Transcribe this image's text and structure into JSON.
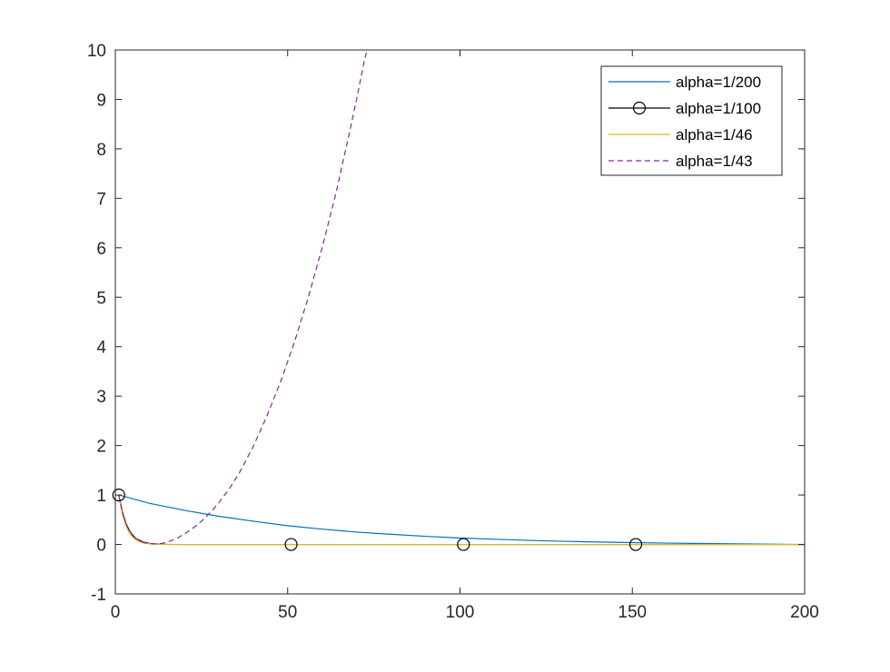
{
  "chart_data": {
    "type": "line",
    "title": "",
    "xlabel": "",
    "ylabel": "",
    "xlim": [
      0,
      200
    ],
    "ylim": [
      -1,
      10
    ],
    "xticks": [
      "0",
      "50",
      "100",
      "150",
      "200"
    ],
    "yticks": [
      "-1",
      "0",
      "1",
      "2",
      "3",
      "4",
      "5",
      "6",
      "7",
      "8",
      "9",
      "10"
    ],
    "grid": false,
    "box": true,
    "legend_position": "top-right",
    "series": [
      {
        "name": "alpha=1/200",
        "color": "#0072bd",
        "style": "solid",
        "marker": "none",
        "x": [
          1,
          10,
          20,
          30,
          40,
          50,
          60,
          70,
          80,
          90,
          100,
          110,
          120,
          130,
          140,
          150,
          160,
          170,
          180,
          190,
          200
        ],
        "y": [
          1.0,
          0.83,
          0.69,
          0.57,
          0.47,
          0.38,
          0.31,
          0.25,
          0.205,
          0.165,
          0.13,
          0.105,
          0.082,
          0.064,
          0.049,
          0.037,
          0.027,
          0.019,
          0.012,
          0.006,
          0.0
        ]
      },
      {
        "name": "alpha=1/100",
        "color": "#000000",
        "style": "solid",
        "marker": "circle",
        "x": [
          1,
          2,
          3,
          4,
          5,
          6,
          8,
          10,
          12,
          15,
          20,
          51,
          101,
          151,
          200
        ],
        "y": [
          1.0,
          0.67,
          0.44,
          0.29,
          0.19,
          0.12,
          0.05,
          0.02,
          0.008,
          0.002,
          0.0,
          0.0,
          0.0,
          0.0,
          0.0
        ],
        "marker_x": [
          1,
          51,
          101,
          151
        ]
      },
      {
        "name": "alpha=1/46",
        "color": "#edb120",
        "style": "solid",
        "marker": "none",
        "x": [
          1,
          2,
          3,
          4,
          5,
          6,
          7,
          8,
          10,
          12,
          15,
          20,
          50,
          100,
          150,
          200
        ],
        "y": [
          1.0,
          0.62,
          0.39,
          0.24,
          0.15,
          0.09,
          0.055,
          0.033,
          0.012,
          0.004,
          0.001,
          0.0,
          0.0,
          0.0,
          0.0,
          0.0
        ]
      },
      {
        "name": "alpha=1/43",
        "color": "#7e2f8e",
        "style": "dashed",
        "marker": "none",
        "x": [
          1,
          2,
          3,
          4,
          5,
          6,
          7,
          8,
          9,
          10,
          11,
          12,
          13,
          14,
          16,
          18,
          20,
          22,
          25,
          28,
          30,
          33,
          36,
          40,
          44,
          48,
          52,
          56,
          60,
          64,
          68,
          70,
          72,
          73
        ],
        "y": [
          1.0,
          0.66,
          0.44,
          0.29,
          0.19,
          0.12,
          0.075,
          0.045,
          0.027,
          0.016,
          0.012,
          0.012,
          0.018,
          0.03,
          0.07,
          0.13,
          0.21,
          0.3,
          0.47,
          0.68,
          0.84,
          1.12,
          1.45,
          1.98,
          2.6,
          3.3,
          4.1,
          5.0,
          6.0,
          7.1,
          8.35,
          9.0,
          9.7,
          10.0
        ]
      }
    ]
  }
}
